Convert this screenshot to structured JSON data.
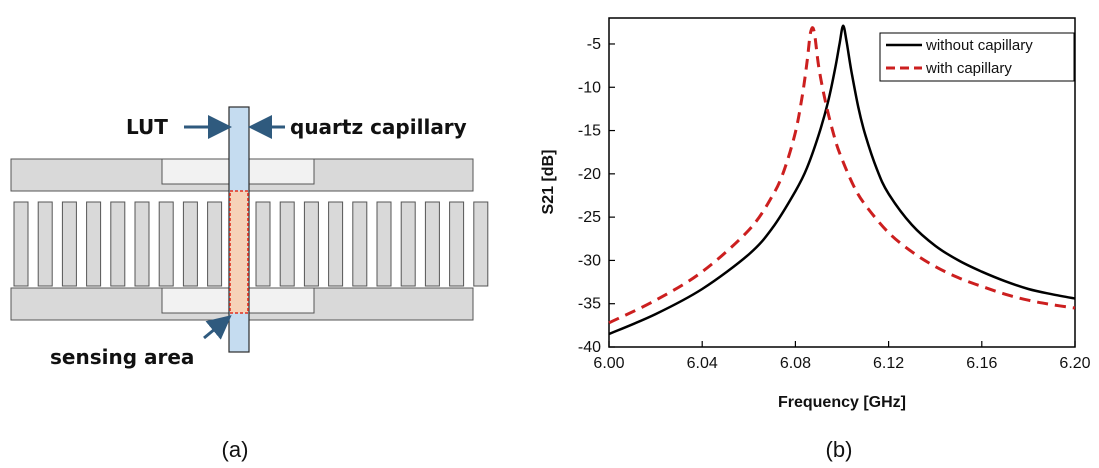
{
  "panel_a": {
    "label_lut": "LUT",
    "label_capillary": "quartz capillary",
    "label_sensing": "sensing area",
    "caption": "(a)",
    "colors": {
      "metal": "#d9d9d9",
      "capillary": "#c5dcf0",
      "sensing": "#f6d2b8",
      "sensing_border": "#e03020",
      "arrow": "#2f5a7e"
    }
  },
  "panel_b": {
    "caption": "(b)"
  },
  "chart_data": {
    "type": "line",
    "xlabel": "Frequency [GHz]",
    "ylabel": "S21 [dB]",
    "xlim": [
      6.0,
      6.2
    ],
    "ylim": [
      -40,
      -2
    ],
    "xticks": [
      6.0,
      6.04,
      6.08,
      6.12,
      6.16,
      6.2
    ],
    "xtick_labels": [
      "6.00",
      "6.04",
      "6.08",
      "6.12",
      "6.16",
      "6.20"
    ],
    "yticks": [
      -40,
      -35,
      -30,
      -25,
      -20,
      -15,
      -10,
      -5
    ],
    "ytick_labels": [
      "-40",
      "-35",
      "-30",
      "-25",
      "-20",
      "-15",
      "-10",
      "-5"
    ],
    "grid": false,
    "legend_position": "top-right",
    "series": [
      {
        "name": "without capillary",
        "color": "#000000",
        "style": "solid",
        "x": [
          6.0,
          6.02,
          6.04,
          6.06,
          6.07,
          6.08,
          6.085,
          6.09,
          6.094,
          6.097,
          6.099,
          6.1005,
          6.102,
          6.104,
          6.107,
          6.11,
          6.115,
          6.12,
          6.13,
          6.14,
          6.15,
          6.16,
          6.17,
          6.18,
          6.19,
          6.2
        ],
        "y": [
          -38.5,
          -36.2,
          -33.3,
          -29.3,
          -26.3,
          -22.0,
          -19.3,
          -15.5,
          -11.7,
          -7.9,
          -4.9,
          -2.9,
          -4.8,
          -8.1,
          -12.3,
          -15.5,
          -19.5,
          -22.3,
          -25.9,
          -28.3,
          -30.0,
          -31.3,
          -32.4,
          -33.3,
          -33.9,
          -34.4
        ]
      },
      {
        "name": "with capillary",
        "color": "#cc1f1f",
        "style": "dashed",
        "x": [
          6.0,
          6.02,
          6.04,
          6.06,
          6.07,
          6.075,
          6.08,
          6.083,
          6.085,
          6.0865,
          6.088,
          6.09,
          6.093,
          6.097,
          6.1,
          6.105,
          6.11,
          6.12,
          6.13,
          6.14,
          6.15,
          6.16,
          6.17,
          6.18,
          6.19,
          6.2
        ],
        "y": [
          -37.2,
          -34.6,
          -31.3,
          -26.5,
          -22.6,
          -19.7,
          -15.2,
          -10.9,
          -7.1,
          -3.7,
          -3.5,
          -7.6,
          -11.8,
          -16.0,
          -18.3,
          -21.4,
          -23.6,
          -26.8,
          -29.0,
          -30.7,
          -32.0,
          -33.0,
          -33.9,
          -34.6,
          -35.1,
          -35.5
        ]
      }
    ]
  }
}
